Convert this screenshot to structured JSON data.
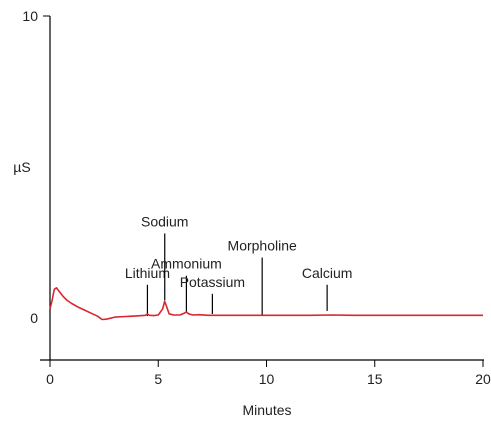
{
  "chart_data": {
    "type": "line",
    "xlabel": "Minutes",
    "ylabel": "µS",
    "xlim": [
      0,
      20
    ],
    "ylim": [
      0,
      10
    ],
    "x_ticks": [
      0,
      5,
      10,
      15,
      20
    ],
    "x_tick_labels": [
      "0",
      "5",
      "10",
      "15",
      "20"
    ],
    "y_tick_labels": [
      {
        "value": 0,
        "label": "0"
      },
      {
        "value": 10,
        "label": "10"
      }
    ],
    "grid": false,
    "line_color": "#d9272e",
    "series": [
      {
        "x": [
          0.0,
          0.1,
          0.2,
          0.3,
          0.4,
          0.6,
          0.8,
          1.0,
          1.3,
          1.6,
          1.9,
          2.2,
          2.4,
          2.6,
          3.0,
          3.5,
          4.0,
          4.4,
          4.5,
          4.6,
          4.8,
          5.0,
          5.2,
          5.3,
          5.4,
          5.5,
          5.7,
          6.0,
          6.2,
          6.3,
          6.4,
          6.6,
          6.9,
          7.3,
          8.0,
          9.0,
          10.0,
          11.0,
          12.0,
          13.0,
          14.0,
          15.0,
          16.0,
          17.0,
          18.0,
          19.0,
          20.0
        ],
        "y": [
          0.3,
          0.6,
          0.95,
          1.0,
          0.9,
          0.72,
          0.58,
          0.48,
          0.36,
          0.26,
          0.16,
          0.06,
          -0.05,
          -0.04,
          0.03,
          0.05,
          0.07,
          0.09,
          0.13,
          0.09,
          0.08,
          0.1,
          0.3,
          0.55,
          0.35,
          0.14,
          0.1,
          0.1,
          0.16,
          0.2,
          0.14,
          0.1,
          0.11,
          0.09,
          0.09,
          0.09,
          0.09,
          0.09,
          0.09,
          0.1,
          0.09,
          0.09,
          0.09,
          0.09,
          0.09,
          0.09,
          0.09
        ]
      }
    ],
    "annotations": [
      {
        "text": "Lithium",
        "x": 4.5,
        "y_bottom": 0.13,
        "y_top": 1.1
      },
      {
        "text": "Sodium",
        "x": 5.3,
        "y_bottom": 0.65,
        "y_top": 2.8
      },
      {
        "text": "Ammonium",
        "x": 6.3,
        "y_bottom": 0.23,
        "y_top": 1.4
      },
      {
        "text": "Potassium",
        "x": 7.5,
        "y_bottom": 0.2,
        "y_top": 0.8
      },
      {
        "text": "Morpholine",
        "x": 9.8,
        "y_bottom": 0.18,
        "y_top": 2.0
      },
      {
        "text": "Calcium",
        "x": 12.8,
        "y_bottom": 0.3,
        "y_top": 1.1
      }
    ]
  }
}
